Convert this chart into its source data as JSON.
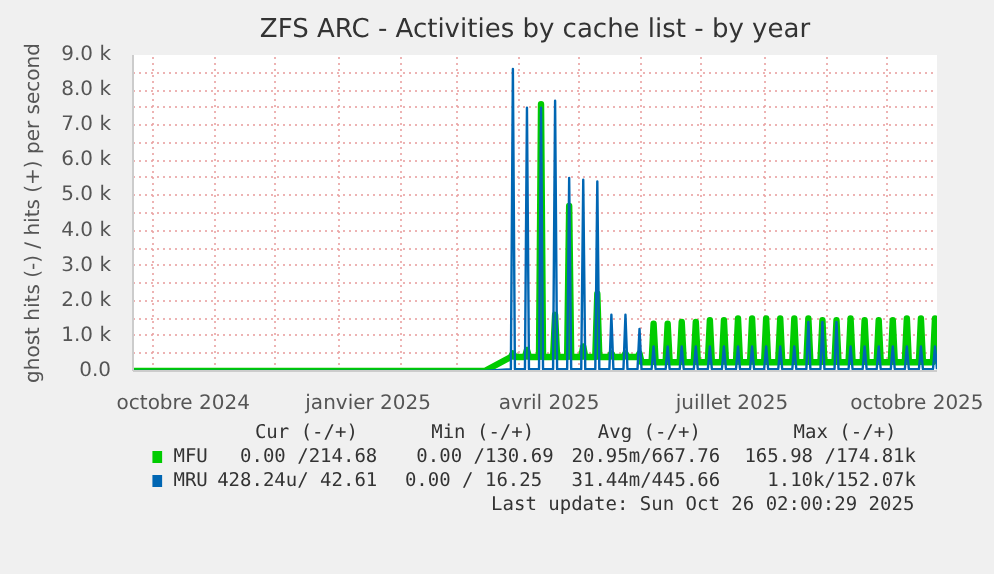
{
  "chart_data": {
    "type": "line",
    "title": "ZFS ARC - Activities by cache list - by year",
    "ylabel": "ghost hits (-) / hits (+) per second",
    "x": [
      "2024-09-21",
      "2025-03-15",
      "2025-03-28",
      "2025-03-29",
      "2025-03-30",
      "2025-04-04",
      "2025-04-05",
      "2025-04-06",
      "2025-04-11",
      "2025-04-12",
      "2025-04-13",
      "2025-04-18",
      "2025-04-19",
      "2025-04-20",
      "2025-04-25",
      "2025-04-26",
      "2025-04-27",
      "2025-05-02",
      "2025-05-03",
      "2025-05-04",
      "2025-05-09",
      "2025-05-10",
      "2025-05-11",
      "2025-05-16",
      "2025-05-17",
      "2025-05-18",
      "2025-05-23",
      "2025-05-24",
      "2025-05-25",
      "2025-05-30",
      "2025-05-31",
      "2025-06-01",
      "2025-06-06",
      "2025-06-07",
      "2025-06-08",
      "2025-06-13",
      "2025-06-14",
      "2025-06-15",
      "2025-06-20",
      "2025-06-21",
      "2025-06-22",
      "2025-06-27",
      "2025-06-28",
      "2025-06-29",
      "2025-07-04",
      "2025-07-05",
      "2025-07-06",
      "2025-07-11",
      "2025-07-12",
      "2025-07-13",
      "2025-07-18",
      "2025-07-19",
      "2025-07-20",
      "2025-07-25",
      "2025-07-26",
      "2025-07-27",
      "2025-08-01",
      "2025-08-02",
      "2025-08-03",
      "2025-08-08",
      "2025-08-09",
      "2025-08-10",
      "2025-08-15",
      "2025-08-16",
      "2025-08-17",
      "2025-08-22",
      "2025-08-23",
      "2025-08-24",
      "2025-08-29",
      "2025-08-30",
      "2025-08-31",
      "2025-09-05",
      "2025-09-06",
      "2025-09-07",
      "2025-09-12",
      "2025-09-13",
      "2025-09-14",
      "2025-09-19",
      "2025-09-20",
      "2025-09-21",
      "2025-09-26",
      "2025-09-27",
      "2025-09-28",
      "2025-10-03",
      "2025-10-04",
      "2025-10-05",
      "2025-10-10",
      "2025-10-11",
      "2025-10-12",
      "2025-10-17",
      "2025-10-18",
      "2025-10-19",
      "2025-10-24",
      "2025-10-25",
      "2025-10-26"
    ],
    "series": [
      {
        "name": "MFU",
        "color": "#00cc00",
        "values": [
          0,
          0,
          400,
          500,
          400,
          400,
          600,
          400,
          400,
          7600,
          400,
          400,
          1600,
          400,
          400,
          4700,
          400,
          400,
          700,
          400,
          400,
          2200,
          400,
          400,
          500,
          400,
          400,
          500,
          400,
          400,
          500,
          250,
          250,
          1350,
          250,
          250,
          1350,
          250,
          250,
          1400,
          250,
          250,
          1400,
          250,
          250,
          1450,
          250,
          250,
          1450,
          250,
          250,
          1500,
          250,
          250,
          1500,
          250,
          250,
          1500,
          250,
          250,
          1500,
          250,
          250,
          1500,
          250,
          250,
          1500,
          250,
          250,
          1450,
          250,
          250,
          1450,
          250,
          250,
          1500,
          250,
          250,
          1450,
          250,
          250,
          1450,
          250,
          250,
          1450,
          250,
          250,
          1500,
          250,
          250,
          1500,
          250,
          250,
          1500,
          250
        ]
      },
      {
        "name": "MRU",
        "color": "#0066b3",
        "values": [
          0,
          0,
          50,
          8600,
          50,
          50,
          7500,
          50,
          50,
          7500,
          50,
          50,
          7700,
          50,
          50,
          5500,
          50,
          50,
          5450,
          50,
          50,
          5400,
          50,
          50,
          1600,
          50,
          50,
          1600,
          50,
          50,
          1200,
          50,
          50,
          700,
          50,
          50,
          700,
          50,
          50,
          700,
          50,
          50,
          700,
          50,
          50,
          700,
          50,
          50,
          700,
          50,
          50,
          700,
          50,
          50,
          700,
          50,
          50,
          700,
          50,
          50,
          700,
          50,
          50,
          700,
          50,
          50,
          1400,
          50,
          50,
          1400,
          50,
          50,
          1400,
          50,
          50,
          700,
          50,
          50,
          700,
          50,
          50,
          700,
          50,
          50,
          700,
          50,
          50,
          700,
          50,
          50,
          700,
          50,
          50,
          700,
          50
        ]
      }
    ],
    "xlim": [
      "2024-09-21",
      "2025-10-26"
    ],
    "xticks": [
      {
        "value": "2024-10-01",
        "label": null
      },
      {
        "value": "2024-10-16",
        "label": "octobre 2024"
      },
      {
        "value": "2024-11-01",
        "label": null
      },
      {
        "value": "2024-12-01",
        "label": null
      },
      {
        "value": "2025-01-01",
        "label": null
      },
      {
        "value": "2025-01-16",
        "label": "janvier 2025"
      },
      {
        "value": "2025-02-01",
        "label": null
      },
      {
        "value": "2025-03-01",
        "label": null
      },
      {
        "value": "2025-04-01",
        "label": null
      },
      {
        "value": "2025-04-16",
        "label": "avril 2025"
      },
      {
        "value": "2025-05-01",
        "label": null
      },
      {
        "value": "2025-06-01",
        "label": null
      },
      {
        "value": "2025-07-01",
        "label": null
      },
      {
        "value": "2025-07-16",
        "label": "juillet 2025"
      },
      {
        "value": "2025-08-01",
        "label": null
      },
      {
        "value": "2025-09-01",
        "label": null
      },
      {
        "value": "2025-10-01",
        "label": null
      },
      {
        "value": "2025-10-16",
        "label": "octobre 2025"
      }
    ],
    "ylim": [
      0,
      9000
    ],
    "yticks": [
      {
        "value": 0,
        "label": "0.0"
      },
      {
        "value": 500,
        "label": null
      },
      {
        "value": 1000,
        "label": "1.0 k"
      },
      {
        "value": 1500,
        "label": null
      },
      {
        "value": 2000,
        "label": "2.0 k"
      },
      {
        "value": 2500,
        "label": null
      },
      {
        "value": 3000,
        "label": "3.0 k"
      },
      {
        "value": 3500,
        "label": null
      },
      {
        "value": 4000,
        "label": "4.0 k"
      },
      {
        "value": 4500,
        "label": null
      },
      {
        "value": 5000,
        "label": "5.0 k"
      },
      {
        "value": 5500,
        "label": null
      },
      {
        "value": 6000,
        "label": "6.0 k"
      },
      {
        "value": 6500,
        "label": null
      },
      {
        "value": 7000,
        "label": "7.0 k"
      },
      {
        "value": 7500,
        "label": null
      },
      {
        "value": 8000,
        "label": "8.0 k"
      },
      {
        "value": 8500,
        "label": null
      },
      {
        "value": 9000,
        "label": "9.0 k"
      }
    ],
    "grid": true,
    "legend": "bottom",
    "line_style": "solid",
    "annotations": [
      "Cur (-/+)",
      "Min (-/+)",
      "Avg (-/+)",
      "Max (-/+)",
      "0.00 /214.68",
      "0.00 /130.69",
      "20.95m/667.76",
      "165.98 /174.81k",
      "428.24u/ 42.61",
      "0.00 /  16.25",
      "31.44m/445.66",
      "1.10k/152.07k",
      "Last update: Sun Oct 26 02:00:29 2025"
    ]
  }
}
